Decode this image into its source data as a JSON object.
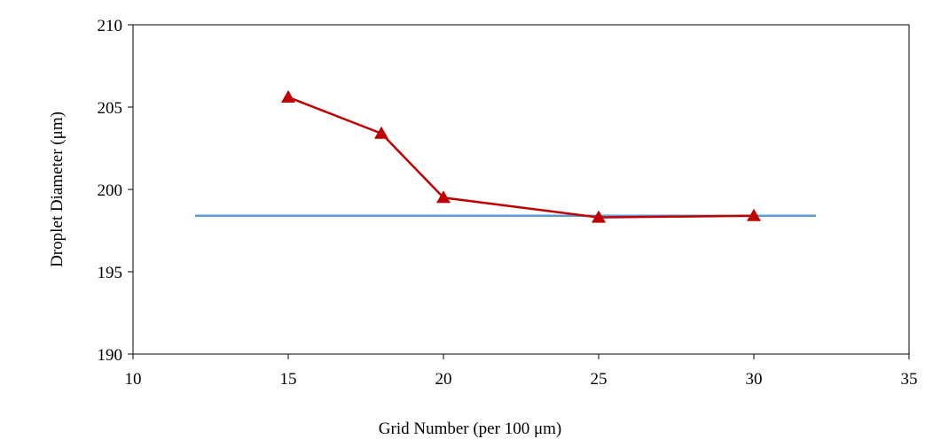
{
  "chart_data": {
    "type": "line",
    "title": "",
    "xlabel": "Grid Number (per 100 μm)",
    "ylabel": "Droplet Diameter  (μm)",
    "xlim": [
      10,
      35
    ],
    "ylim": [
      190,
      210
    ],
    "xticks": [
      10,
      15,
      20,
      25,
      30,
      35
    ],
    "yticks": [
      190,
      195,
      200,
      205,
      210
    ],
    "grid": false,
    "legend": "none",
    "series": [
      {
        "x": [
          15,
          18,
          20,
          25,
          30
        ],
        "y": [
          205.6,
          203.4,
          199.5,
          198.3,
          198.4
        ],
        "color": "#c00000",
        "marker": "triangle"
      }
    ],
    "reference_line": {
      "x": [
        12,
        32
      ],
      "y": 198.4,
      "color": "#5b9bd5"
    }
  }
}
